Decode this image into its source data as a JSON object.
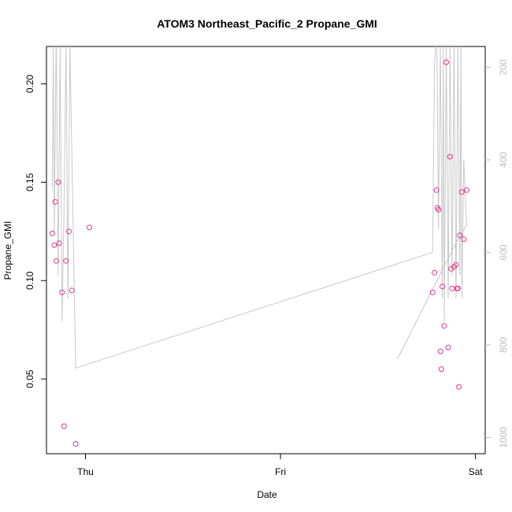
{
  "chart_data": {
    "type": "scatter",
    "title": "ATOM3 Northeast_Pacific_2 Propane_GMI",
    "xlabel": "Date",
    "ylabel": "Propane_GMI",
    "x_ticks": [
      {
        "label": "Thu",
        "value": 0
      },
      {
        "label": "Fri",
        "value": 1
      },
      {
        "label": "Sat",
        "value": 2
      }
    ],
    "xlim": [
      -0.2,
      2.05
    ],
    "ylim": [
      0.012,
      0.219
    ],
    "y_ticks": [
      0.05,
      0.1,
      0.15,
      0.2
    ],
    "y_tick_labels": [
      "0.05",
      "0.10",
      "0.15",
      "0.20"
    ],
    "y2_ticks": [
      200,
      400,
      600,
      800,
      1000
    ],
    "y2_tick_labels": [
      "200",
      "400",
      "600",
      "800",
      "1000"
    ],
    "y2lim": [
      1035,
      155
    ],
    "colors": {
      "points": "#e0358a",
      "line": "#c8c8c8",
      "axis": "#000000",
      "right_axis": "#bebebe"
    },
    "series": [
      {
        "values": [
          [
            -0.17,
            0.124
          ],
          [
            -0.16,
            0.118
          ],
          [
            -0.155,
            0.14
          ],
          [
            -0.15,
            0.11
          ],
          [
            -0.14,
            0.15
          ],
          [
            -0.135,
            0.119
          ],
          [
            -0.12,
            0.094
          ],
          [
            -0.11,
            0.026
          ],
          [
            -0.1,
            0.11
          ],
          [
            -0.085,
            0.125
          ],
          [
            -0.07,
            0.095
          ],
          [
            -0.05,
            0.017
          ],
          [
            0.02,
            0.127
          ],
          [
            1.78,
            0.094
          ],
          [
            1.79,
            0.104
          ],
          [
            1.8,
            0.146
          ],
          [
            1.805,
            0.137
          ],
          [
            1.81,
            0.136
          ],
          [
            1.82,
            0.064
          ],
          [
            1.825,
            0.055
          ],
          [
            1.83,
            0.097
          ],
          [
            1.84,
            0.077
          ],
          [
            1.85,
            0.211
          ],
          [
            1.86,
            0.066
          ],
          [
            1.87,
            0.163
          ],
          [
            1.875,
            0.106
          ],
          [
            1.88,
            0.096
          ],
          [
            1.89,
            0.107
          ],
          [
            1.9,
            0.108
          ],
          [
            1.905,
            0.096
          ],
          [
            1.91,
            0.096
          ],
          [
            1.915,
            0.046
          ],
          [
            1.92,
            0.123
          ],
          [
            1.93,
            0.145
          ],
          [
            1.94,
            0.121
          ],
          [
            1.955,
            0.146
          ]
        ]
      }
    ],
    "pressure_line": [
      [
        -0.17,
        460
      ],
      [
        -0.165,
        150
      ],
      [
        -0.16,
        560
      ],
      [
        -0.15,
        120
      ],
      [
        -0.14,
        650
      ],
      [
        -0.13,
        150
      ],
      [
        -0.12,
        750
      ],
      [
        -0.11,
        500
      ],
      [
        -0.1,
        150
      ],
      [
        -0.09,
        700
      ],
      [
        -0.08,
        150
      ],
      [
        -0.05,
        850
      ],
      [
        1.78,
        600
      ],
      [
        1.79,
        200
      ],
      [
        1.8,
        100
      ],
      [
        1.805,
        250
      ],
      [
        1.81,
        550
      ],
      [
        1.82,
        150
      ],
      [
        1.83,
        700
      ],
      [
        1.835,
        150
      ],
      [
        1.84,
        750
      ],
      [
        1.85,
        150
      ],
      [
        1.86,
        700
      ],
      [
        1.87,
        150
      ],
      [
        1.88,
        650
      ],
      [
        1.89,
        150
      ],
      [
        1.9,
        700
      ],
      [
        1.91,
        150
      ],
      [
        1.92,
        650
      ],
      [
        1.925,
        150
      ],
      [
        1.93,
        700
      ],
      [
        1.94,
        400
      ],
      [
        1.95,
        500
      ],
      [
        1.955,
        540
      ],
      [
        1.9,
        580
      ],
      [
        1.6,
        830
      ]
    ]
  }
}
